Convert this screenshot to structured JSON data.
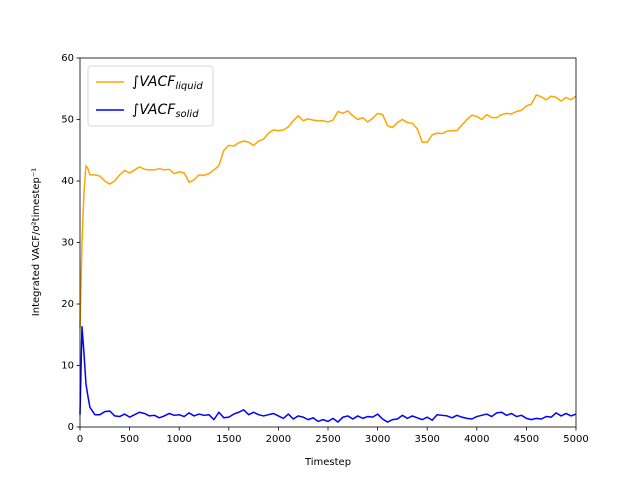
{
  "chart_data": {
    "type": "line",
    "xlabel": "Timestep",
    "ylabel": "Integrated VACF/σ²timestep⁻¹",
    "x": [
      0,
      20,
      40,
      60,
      80,
      100,
      150,
      200,
      250,
      300,
      350,
      400,
      450,
      500,
      550,
      600,
      650,
      700,
      750,
      800,
      850,
      900,
      950,
      1000,
      1050,
      1100,
      1150,
      1200,
      1250,
      1300,
      1350,
      1400,
      1450,
      1500,
      1550,
      1600,
      1650,
      1700,
      1750,
      1800,
      1850,
      1900,
      1950,
      2000,
      2050,
      2100,
      2150,
      2200,
      2250,
      2300,
      2350,
      2400,
      2450,
      2500,
      2550,
      2600,
      2650,
      2700,
      2750,
      2800,
      2850,
      2900,
      2950,
      3000,
      3050,
      3100,
      3150,
      3200,
      3250,
      3300,
      3350,
      3400,
      3450,
      3500,
      3550,
      3600,
      3650,
      3700,
      3750,
      3800,
      3850,
      3900,
      3950,
      4000,
      4050,
      4100,
      4150,
      4200,
      4250,
      4300,
      4350,
      4400,
      4450,
      4500,
      4550,
      4600,
      4650,
      4700,
      4750,
      4800,
      4850,
      4900,
      4950,
      5000
    ],
    "series": [
      {
        "name": "∫VACF",
        "subscript": "liquid",
        "color": "#ffa500",
        "values": [
          16,
          30,
          38,
          42.5,
          42,
          41,
          41,
          40.8,
          40,
          39.5,
          40,
          41,
          41.7,
          41.3,
          41.8,
          42.3,
          41.9,
          41.8,
          41.8,
          42,
          41.8,
          41.9,
          41.2,
          41.5,
          41.3,
          39.8,
          40.2,
          41,
          40.9,
          41.2,
          41.8,
          42.5,
          45,
          45.8,
          45.7,
          46.2,
          46.5,
          46.3,
          45.8,
          46.5,
          46.8,
          47.8,
          48.3,
          48.2,
          48.3,
          48.8,
          49.8,
          50.6,
          49.8,
          50.1,
          49.9,
          49.8,
          49.8,
          49.6,
          49.9,
          51.3,
          51,
          51.4,
          50.6,
          50,
          50.3,
          49.6,
          50.2,
          51,
          50.8,
          49,
          48.7,
          49.5,
          50,
          49.5,
          49.4,
          48.5,
          46.3,
          46.3,
          47.5,
          47.8,
          47.7,
          48.1,
          48.2,
          48.2,
          49.1,
          50,
          50.7,
          50.5,
          50,
          50.8,
          50.3,
          50.3,
          50.8,
          51,
          50.9,
          51.3,
          51.5,
          52.2,
          52.5,
          54,
          53.7,
          53.2,
          53.8,
          53.6,
          53,
          53.6,
          53.2,
          53.8
        ]
      },
      {
        "name": "∫VACF",
        "subscript": "solid",
        "color": "#0000ff",
        "values": [
          2,
          16.3,
          12,
          7,
          5,
          3.2,
          2,
          2,
          2.5,
          2.6,
          1.8,
          1.7,
          2.1,
          1.6,
          2,
          2.4,
          2.2,
          1.8,
          1.9,
          1.5,
          1.8,
          2.2,
          1.9,
          2,
          1.7,
          2.3,
          1.8,
          2.1,
          1.9,
          2,
          1.2,
          2.4,
          1.5,
          1.6,
          2.1,
          2.4,
          2.8,
          2,
          2.4,
          2,
          1.8,
          2,
          2.2,
          1.8,
          1.4,
          2.1,
          1.3,
          1.8,
          1.6,
          1.2,
          1.5,
          0.9,
          1.2,
          0.9,
          1.4,
          0.8,
          1.6,
          1.8,
          1.3,
          1.8,
          1.4,
          1.7,
          1.6,
          2.1,
          1.3,
          0.8,
          1.2,
          1.3,
          1.9,
          1.4,
          1.8,
          1.5,
          1.2,
          1.6,
          1.1,
          2,
          1.9,
          1.8,
          1.5,
          1.9,
          1.6,
          1.4,
          1.3,
          1.7,
          1.9,
          2.1,
          1.7,
          2.3,
          2.4,
          1.9,
          2.2,
          1.7,
          1.9,
          1.4,
          1.2,
          1.4,
          1.3,
          1.7,
          1.6,
          2.3,
          1.8,
          2.2,
          1.8,
          2.1
        ]
      }
    ],
    "xlim": [
      0,
      5000
    ],
    "xticks": [
      0,
      500,
      1000,
      1500,
      2000,
      2500,
      3000,
      3500,
      4000,
      4500,
      5000
    ],
    "ylim": [
      0,
      60
    ],
    "yticks": [
      0,
      10,
      20,
      30,
      40,
      50,
      60
    ],
    "legend": "upper left"
  }
}
